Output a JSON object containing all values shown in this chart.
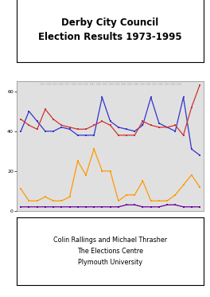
{
  "title": "Derby City Council\nElection Results 1973-1995",
  "years": [
    1973,
    1974,
    1975,
    1976,
    1977,
    1978,
    1979,
    1980,
    1981,
    1982,
    1983,
    1984,
    1985,
    1986,
    1987,
    1988,
    1989,
    1990,
    1991,
    1992,
    1993,
    1994,
    1995
  ],
  "labour": [
    40,
    50,
    45,
    40,
    40,
    42,
    41,
    38,
    38,
    38,
    57,
    45,
    42,
    41,
    40,
    43,
    57,
    44,
    42,
    40,
    57,
    31,
    28
  ],
  "conservative": [
    46,
    43,
    41,
    51,
    46,
    43,
    42,
    41,
    41,
    43,
    45,
    43,
    38,
    38,
    38,
    45,
    43,
    42,
    42,
    43,
    38,
    52,
    63
  ],
  "libdem": [
    11,
    5,
    5,
    7,
    5,
    5,
    7,
    25,
    18,
    31,
    20,
    20,
    5,
    8,
    8,
    15,
    5,
    5,
    5,
    8,
    13,
    18,
    12
  ],
  "other": [
    2,
    2,
    2,
    2,
    2,
    2,
    2,
    2,
    2,
    2,
    2,
    2,
    2,
    3,
    3,
    2,
    2,
    2,
    3,
    3,
    2,
    2,
    2
  ],
  "labour_color": "#3333cc",
  "conservative_color": "#cc3333",
  "libdem_color": "#ff9900",
  "other_color": "#660099",
  "ylim": [
    0,
    65
  ],
  "yticks": [
    0,
    20,
    40,
    60
  ],
  "bg_color": "#e0e0e0",
  "footer_text": "Colin Rallings and Michael Thrasher\nThe Elections Centre\nPlymouth University"
}
